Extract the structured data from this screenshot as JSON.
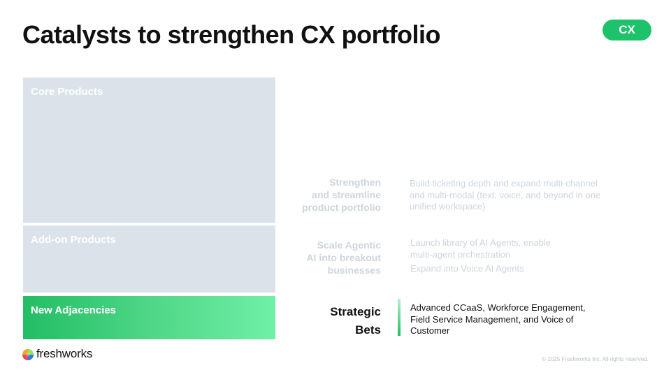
{
  "slide": {
    "title": "Catalysts to strengthen CX portfolio",
    "badge": "CX"
  },
  "product_boxes": [
    {
      "label": "Core Products"
    },
    {
      "label": "Add-on Products"
    },
    {
      "label": "New Adjacencies"
    }
  ],
  "catalysts": [
    {
      "category": [
        "Strengthen",
        "and streamline",
        "product portfolio"
      ],
      "descriptions": [
        "Build ticketing depth and expand multi-channel and multi-modal (text, voice, and beyond in one unified workspace)"
      ]
    },
    {
      "category": [
        "Scale Agentic",
        "AI into breakout",
        "businesses"
      ],
      "descriptions": [
        "Launch library of AI Agents, enable multi-agent orchestration",
        "Expand into Voice AI Agents"
      ]
    },
    {
      "category": [
        "Strategic",
        "Bets"
      ],
      "descriptions": [
        "Advanced CCaaS, Workforce Engagement, Field Service Management, and Voice of Customer"
      ]
    }
  ],
  "footer": {
    "logo_text": "freshworks",
    "copyright": "© 2025 Freshworks Inc. All rights reserved."
  },
  "colors": {
    "accent_green": "#1ec26a",
    "muted_box": "#dbe2ea",
    "muted_text": "#cdd5de"
  }
}
